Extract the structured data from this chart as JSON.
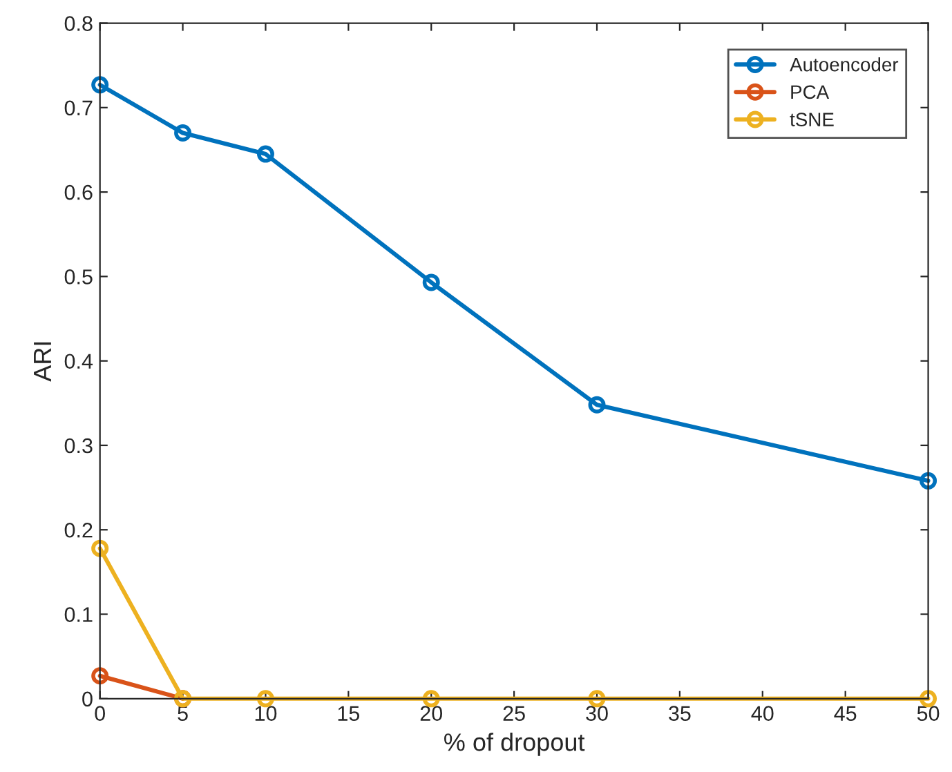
{
  "chart_data": {
    "type": "line",
    "xlabel": "% of dropout",
    "ylabel": "ARI",
    "x": [
      0,
      5,
      10,
      20,
      30,
      50
    ],
    "series": [
      {
        "name": "Autoencoder",
        "color": "#0072bd",
        "values": [
          0.727,
          0.67,
          0.645,
          0.493,
          0.348,
          0.258
        ]
      },
      {
        "name": "PCA",
        "color": "#d95319",
        "values": [
          0.027,
          0,
          null,
          null,
          null,
          null
        ]
      },
      {
        "name": "tSNE",
        "color": "#edb120",
        "values": [
          0.178,
          0,
          0,
          0,
          0,
          0
        ]
      }
    ],
    "xlim": [
      0,
      50
    ],
    "xticks": [
      0,
      5,
      10,
      15,
      20,
      25,
      30,
      35,
      40,
      45,
      50
    ],
    "ylim": [
      0,
      0.8
    ],
    "yticks": [
      0,
      0.1,
      0.2,
      0.3,
      0.4,
      0.5,
      0.6,
      0.7,
      0.8
    ],
    "grid": false,
    "legend": "top right",
    "marker": "circle",
    "line_style": "solid"
  }
}
